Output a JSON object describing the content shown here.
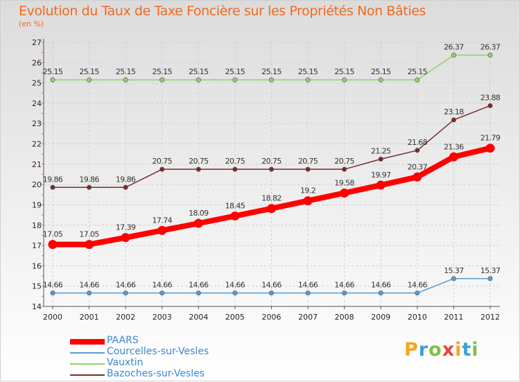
{
  "title": "Evolution du Taux de Taxe Foncière sur les Propriétés Non Bâties",
  "unit": "(en %)",
  "logo": {
    "letters": [
      "P",
      "r",
      "o",
      "x",
      "i",
      "t",
      "i"
    ],
    "colors": [
      "#f5a623",
      "#3aa0db",
      "#7cc242",
      "#e8453c",
      "#f5a623",
      "#3aa0db",
      "#7cc242"
    ]
  },
  "chart_data": {
    "type": "line",
    "title": "Evolution du Taux de Taxe Foncière sur les Propriétés Non Bâties",
    "ylabel": "(en %)",
    "xlabel": "",
    "ylim": [
      14,
      27
    ],
    "yticks": [
      "14",
      "15",
      "16",
      "17",
      "18",
      "19",
      "20",
      "21",
      "22",
      "23",
      "24",
      "25",
      "26",
      "27"
    ],
    "categories": [
      "2000",
      "2001",
      "2002",
      "2003",
      "2004",
      "2005",
      "2006",
      "2007",
      "2008",
      "2009",
      "2010",
      "2011",
      "2012"
    ],
    "legend_position": "bottom-left",
    "series": [
      {
        "name": "PAARS",
        "color": "#ff0000",
        "values": [
          17.05,
          17.05,
          17.39,
          17.74,
          18.09,
          18.45,
          18.82,
          19.2,
          19.58,
          19.97,
          20.37,
          21.36,
          21.79
        ],
        "labels": [
          "17.05",
          "17.05",
          "17.39",
          "17.74",
          "18.09",
          "18.45",
          "18.82",
          "19.2",
          "19.58",
          "19.97",
          "20.37",
          "21.36",
          "21.79"
        ]
      },
      {
        "name": "Courcelles-sur-Vesles",
        "color": "#5a9ad0",
        "values": [
          14.66,
          14.66,
          14.66,
          14.66,
          14.66,
          14.66,
          14.66,
          14.66,
          14.66,
          14.66,
          14.66,
          15.37,
          15.37
        ],
        "labels": [
          "14.66",
          "14.66",
          "14.66",
          "14.66",
          "14.66",
          "14.66",
          "14.66",
          "14.66",
          "14.66",
          "14.66",
          "14.66",
          "15.37",
          "15.37"
        ]
      },
      {
        "name": "Vauxtin",
        "color": "#8fd16a",
        "values": [
          25.15,
          25.15,
          25.15,
          25.15,
          25.15,
          25.15,
          25.15,
          25.15,
          25.15,
          25.15,
          25.15,
          26.37,
          26.37
        ],
        "labels": [
          "25.15",
          "25.15",
          "25.15",
          "25.15",
          "25.15",
          "25.15",
          "25.15",
          "25.15",
          "25.15",
          "25.15",
          "25.15",
          "26.37",
          "26.37"
        ]
      },
      {
        "name": "Bazoches-sur-Vesles",
        "color": "#7a2a2a",
        "values": [
          19.86,
          19.86,
          19.86,
          20.75,
          20.75,
          20.75,
          20.75,
          20.75,
          20.75,
          21.25,
          21.68,
          23.18,
          23.88
        ],
        "labels": [
          "19.86",
          "19.86",
          "19.86",
          "20.75",
          "20.75",
          "20.75",
          "20.75",
          "20.75",
          "20.75",
          "21.25",
          "21.68",
          "23.18",
          "23.88"
        ]
      }
    ]
  }
}
